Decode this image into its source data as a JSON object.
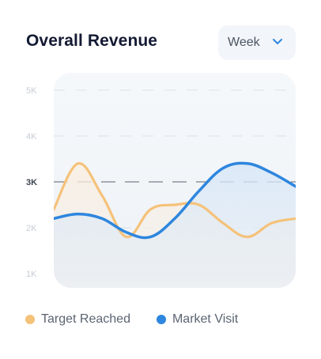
{
  "header": {
    "title": "Overall Revenue",
    "period": "Week"
  },
  "chart_data": {
    "type": "line",
    "title": "Overall Revenue",
    "xlabel": "",
    "ylabel": "",
    "x": [
      0,
      1,
      2,
      3,
      4,
      5,
      6,
      7,
      8,
      9,
      10
    ],
    "ylim": [
      1000,
      5000
    ],
    "yticks": [
      {
        "label": "5K",
        "value": 5000
      },
      {
        "label": "4K",
        "value": 4000
      },
      {
        "label": "3K",
        "value": 3000
      },
      {
        "label": "2K",
        "value": 2000
      },
      {
        "label": "1K",
        "value": 1000
      }
    ],
    "highlight_tick": "3K",
    "grid": true,
    "legend_position": "bottom",
    "series": [
      {
        "name": "Target Reached",
        "color": "#f5c27a",
        "values": [
          2400,
          3400,
          2700,
          1800,
          2400,
          2500,
          2500,
          2100,
          1800,
          2100,
          2200
        ]
      },
      {
        "name": "Market Visit",
        "color": "#2e86de",
        "values": [
          2200,
          2300,
          2200,
          1900,
          1800,
          2200,
          2800,
          3300,
          3400,
          3200,
          2900
        ]
      }
    ]
  }
}
